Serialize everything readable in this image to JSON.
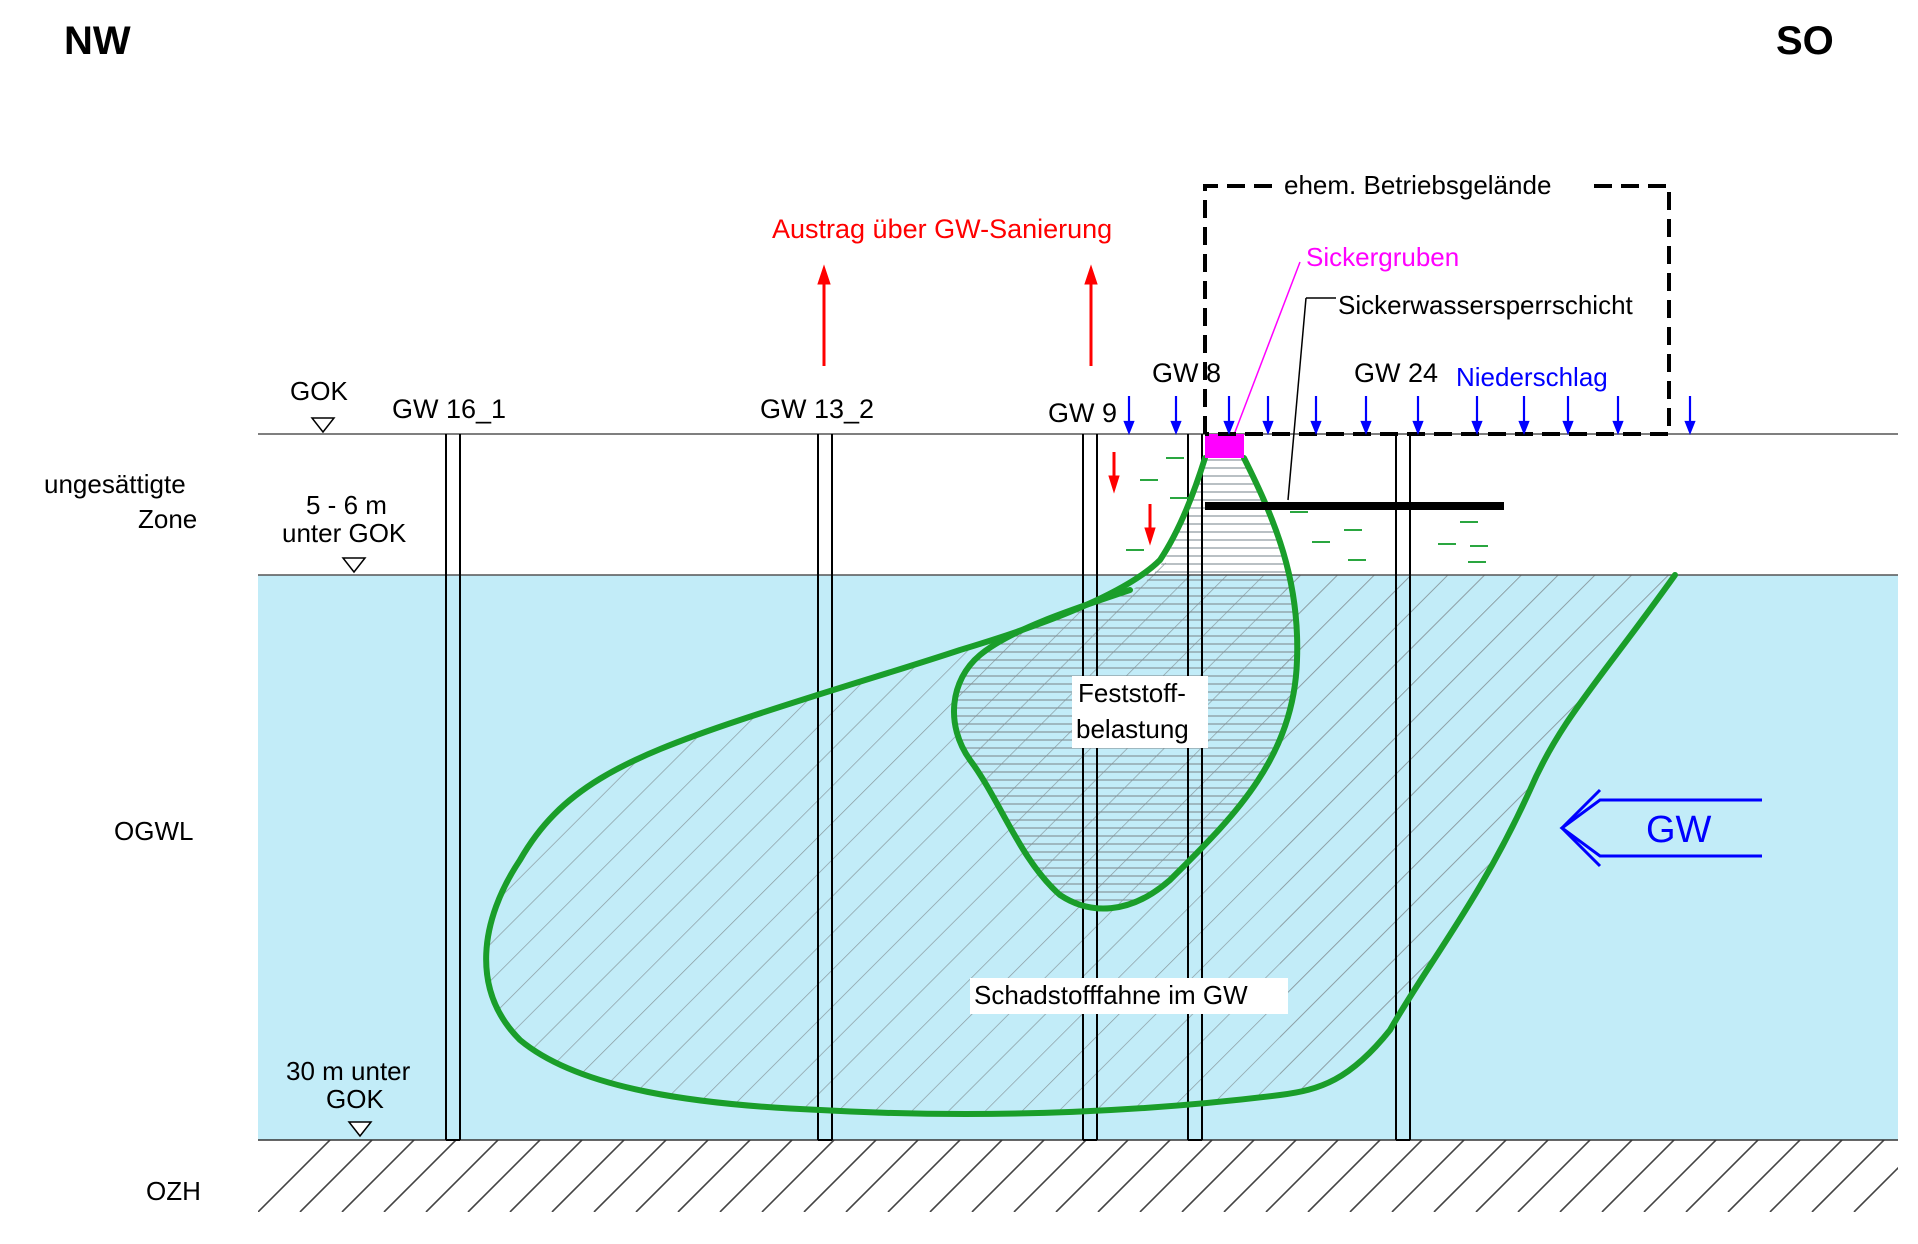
{
  "orientation": {
    "left": "NW",
    "right": "SO"
  },
  "zones": {
    "unsaturated_line1": "ungesättigte",
    "unsaturated_line2": "Zone",
    "aquifer": "OGWL",
    "aquitard": "OZH"
  },
  "levels": {
    "ground_surface": "GOK",
    "water_table_line1": "5 - 6 m",
    "water_table_line2": "unter GOK",
    "aquifer_base_line1": "30 m unter",
    "aquifer_base_line2": "GOK"
  },
  "wells": [
    "GW 16_1",
    "GW 13_2",
    "GW 9",
    "GW 8",
    "GW 24"
  ],
  "annotations": {
    "remediation_export": "Austrag über GW-Sanierung",
    "former_site": "ehem. Betriebsgelände",
    "seepage_pits": "Sickergruben",
    "seepage_barrier": "Sickerwassersperrschicht",
    "precipitation": "Niederschlag",
    "solid_contamination_line1": "Feststoff-",
    "solid_contamination_line2": "belastung",
    "plume": "Schadstofffahne im GW",
    "groundwater_flow": "GW"
  },
  "colors": {
    "groundwater": "#c2ecf8",
    "plume_outline": "#1a9e2a",
    "remediation_arrows": "#ff0000",
    "precipitation_arrows": "#0000ff",
    "seepage_pits": "#ff00ff",
    "seepage_marks": "#2aa640",
    "outline": "#000000"
  }
}
